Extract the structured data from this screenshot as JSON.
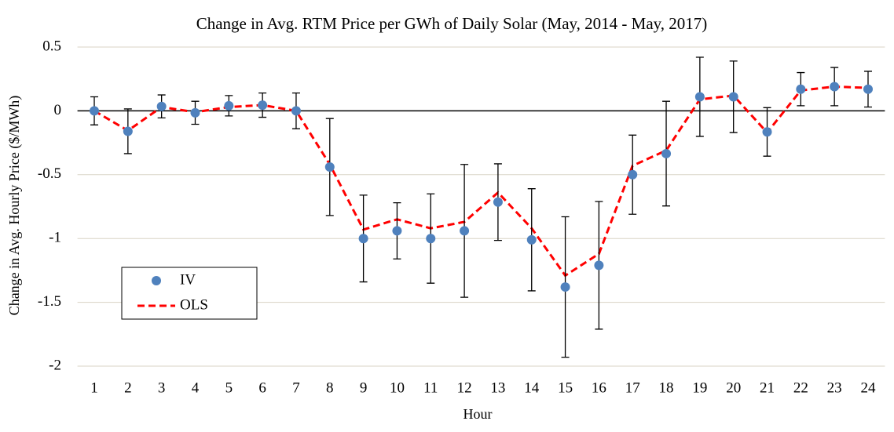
{
  "chart_data": {
    "type": "errorline",
    "title": "Change in Avg. RTM Price per GWh of Daily Solar (May, 2014 - May, 2017)",
    "x_label": "Hour",
    "y_label": "Change in Avg. Hourly Price ($/MWh)",
    "categories": [
      "1",
      "2",
      "3",
      "4",
      "5",
      "6",
      "7",
      "8",
      "9",
      "10",
      "11",
      "12",
      "13",
      "14",
      "15",
      "16",
      "17",
      "18",
      "19",
      "20",
      "21",
      "22",
      "23",
      "24"
    ],
    "series": [
      {
        "name": "IV",
        "color": "#4f81bd",
        "style": "markers",
        "values": [
          0,
          -0.16,
          0.035,
          -0.015,
          0.04,
          0.045,
          0,
          -0.44,
          -1.0,
          -0.94,
          -1.0,
          -0.94,
          -0.715,
          -1.01,
          -1.38,
          -1.21,
          -0.5,
          -0.335,
          0.11,
          0.11,
          -0.165,
          0.17,
          0.19,
          0.17
        ],
        "errors": [
          0.11,
          0.175,
          0.09,
          0.09,
          0.08,
          0.095,
          0.14,
          0.38,
          0.34,
          0.22,
          0.35,
          0.52,
          0.3,
          0.4,
          0.55,
          0.5,
          0.31,
          0.41,
          0.31,
          0.28,
          0.19,
          0.13,
          0.15,
          0.14
        ]
      },
      {
        "name": "OLS",
        "color": "#ff0000",
        "style": "dashed-line",
        "values": [
          0,
          -0.155,
          0.03,
          -0.01,
          0.03,
          0.045,
          0,
          -0.42,
          -0.93,
          -0.85,
          -0.92,
          -0.87,
          -0.64,
          -0.92,
          -1.29,
          -1.12,
          -0.43,
          -0.31,
          0.09,
          0.12,
          -0.17,
          0.16,
          0.19,
          0.18
        ]
      }
    ],
    "ylim": [
      -2,
      0.5
    ],
    "yticks": [
      0.5,
      0,
      -0.5,
      -1,
      -1.5,
      -2
    ],
    "grid": true,
    "legend": "lower left"
  }
}
